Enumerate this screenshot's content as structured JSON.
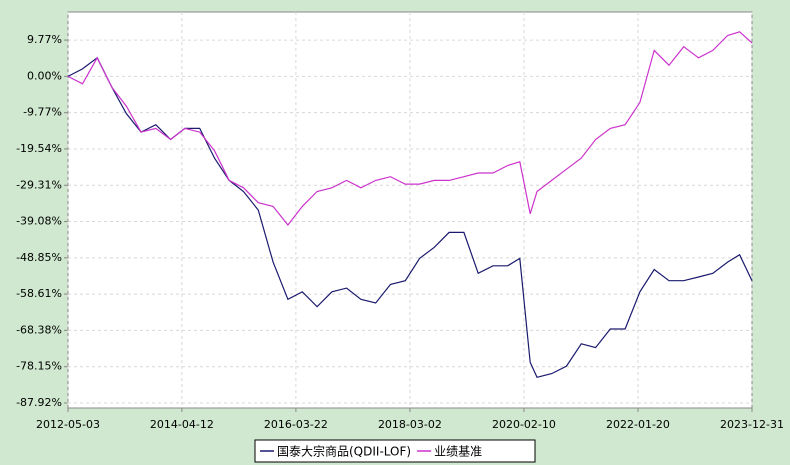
{
  "chart_data": {
    "type": "line",
    "x": [
      "2012-05-03",
      "2012-08-01",
      "2012-11-01",
      "2013-02-01",
      "2013-05-01",
      "2013-08-01",
      "2013-11-01",
      "2014-02-01",
      "2014-05-01",
      "2014-08-01",
      "2014-11-01",
      "2015-02-01",
      "2015-05-01",
      "2015-08-01",
      "2015-11-01",
      "2016-02-01",
      "2016-05-01",
      "2016-08-01",
      "2016-11-01",
      "2017-02-01",
      "2017-05-01",
      "2017-08-01",
      "2017-11-01",
      "2018-02-01",
      "2018-05-01",
      "2018-08-01",
      "2018-11-01",
      "2019-02-01",
      "2019-05-01",
      "2019-08-01",
      "2019-11-01",
      "2020-01-15",
      "2020-03-20",
      "2020-05-01",
      "2020-08-01",
      "2020-11-01",
      "2021-02-01",
      "2021-05-01",
      "2021-08-01",
      "2021-11-01",
      "2022-02-01",
      "2022-05-01",
      "2022-08-01",
      "2022-11-01",
      "2023-02-01",
      "2023-05-01",
      "2023-08-01",
      "2023-10-15",
      "2023-12-31"
    ],
    "series": [
      {
        "name": "国泰大宗商品(QDII-LOF)",
        "color": "#1a1a6e",
        "values": [
          0,
          2,
          5,
          -3,
          -10,
          -15,
          -13,
          -17,
          -14,
          -14,
          -22,
          -28,
          -31,
          -36,
          -50,
          -60,
          -58,
          -62,
          -58,
          -57,
          -60,
          -61,
          -56,
          -55,
          -49,
          -46,
          -42,
          -42,
          -53,
          -51,
          -51,
          -49,
          -77,
          -81,
          -80,
          -78,
          -72,
          -73,
          -68,
          -68,
          -58,
          -52,
          -55,
          -55,
          -54,
          -53,
          -50,
          -48,
          -55
        ]
      },
      {
        "name": "业绩基准",
        "color": "#cc33cc",
        "values": [
          0,
          -2,
          5,
          -3,
          -8,
          -15,
          -14,
          -17,
          -14,
          -15,
          -20,
          -28,
          -30,
          -34,
          -35,
          -40,
          -35,
          -31,
          -30,
          -28,
          -30,
          -28,
          -27,
          -29,
          -29,
          -28,
          -28,
          -27,
          -26,
          -26,
          -24,
          -23,
          -37,
          -31,
          -28,
          -25,
          -22,
          -17,
          -14,
          -13,
          -7,
          7,
          3,
          8,
          5,
          7,
          11,
          12,
          9
        ]
      }
    ],
    "xlim": [
      "2012-05-03",
      "2023-12-31"
    ],
    "xticks": [
      "2012-05-03",
      "2014-04-12",
      "2016-03-22",
      "2018-03-02",
      "2020-02-10",
      "2022-01-20",
      "2023-12-31"
    ],
    "ylim": [
      -89.27,
      17.33
    ],
    "yticks": [
      {
        "value": 9.77,
        "label": "9.77%"
      },
      {
        "value": 0,
        "label": "0.00%"
      },
      {
        "value": -9.77,
        "label": "-9.77%"
      },
      {
        "value": -19.54,
        "label": "-19.54%"
      },
      {
        "value": -29.31,
        "label": "-29.31%"
      },
      {
        "value": -39.08,
        "label": "-39.08%"
      },
      {
        "value": -48.85,
        "label": "-48.85%"
      },
      {
        "value": -58.61,
        "label": "-58.61%"
      },
      {
        "value": -68.38,
        "label": "-68.38%"
      },
      {
        "value": -78.15,
        "label": "-78.15%"
      },
      {
        "value": -87.92,
        "label": "-87.92%"
      }
    ],
    "grid": true
  }
}
